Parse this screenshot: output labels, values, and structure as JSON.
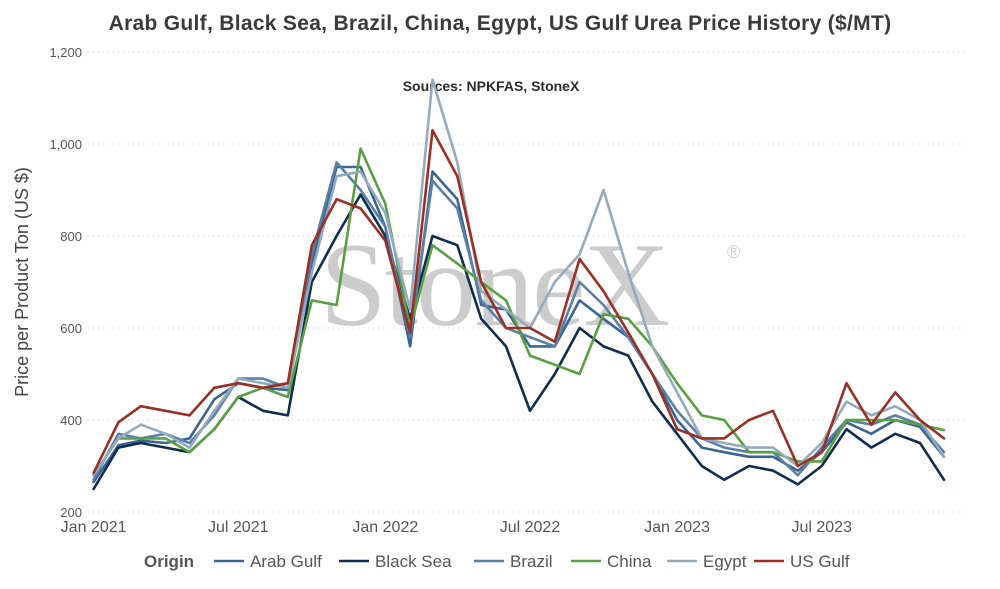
{
  "chart_data": {
    "type": "line",
    "title": "Arab Gulf, Black Sea, Brazil, China, Egypt, US Gulf Urea Price History ($/MT)",
    "subtitle": "Sources: NPKFAS, StoneX",
    "ylabel": "Price per Product Ton (US $)",
    "xlabel": "",
    "ylim": [
      200,
      1200
    ],
    "yticks": [
      200,
      400,
      600,
      800,
      1000,
      1200
    ],
    "ytick_labels": [
      "200",
      "400",
      "600",
      "800",
      "1,000",
      "1,200"
    ],
    "xlim": [
      "2020-12-25",
      "2023-12-31"
    ],
    "xticks": [
      {
        "date": "2021-01-01",
        "label": "Jan 2021"
      },
      {
        "date": "2021-07-01",
        "label": "Jul 2021"
      },
      {
        "date": "2022-01-01",
        "label": "Jan 2022"
      },
      {
        "date": "2022-07-01",
        "label": "Jul 2022"
      },
      {
        "date": "2023-01-01",
        "label": "Jan 2023"
      },
      {
        "date": "2023-07-01",
        "label": "Jul 2023"
      }
    ],
    "grid": "horizontal dotted",
    "legend_title": "Origin",
    "legend_position": "bottom",
    "watermark": "StoneX",
    "watermark_mark": "®",
    "series": [
      {
        "name": "Arab Gulf",
        "color": "#3b6591",
        "points": [
          [
            "2021-01-01",
            265
          ],
          [
            "2021-02-01",
            345
          ],
          [
            "2021-03-01",
            355
          ],
          [
            "2021-04-01",
            350
          ],
          [
            "2021-05-01",
            360
          ],
          [
            "2021-06-01",
            445
          ],
          [
            "2021-07-01",
            480
          ],
          [
            "2021-08-01",
            470
          ],
          [
            "2021-09-01",
            465
          ],
          [
            "2021-10-01",
            740
          ],
          [
            "2021-11-01",
            950
          ],
          [
            "2021-12-01",
            950
          ],
          [
            "2022-01-01",
            820
          ],
          [
            "2022-02-01",
            560
          ],
          [
            "2022-03-01",
            940
          ],
          [
            "2022-04-01",
            880
          ],
          [
            "2022-05-01",
            650
          ],
          [
            "2022-06-01",
            640
          ],
          [
            "2022-07-01",
            560
          ],
          [
            "2022-08-01",
            560
          ],
          [
            "2022-09-01",
            660
          ],
          [
            "2022-10-01",
            620
          ],
          [
            "2022-11-01",
            580
          ],
          [
            "2022-12-01",
            500
          ],
          [
            "2023-01-01",
            400
          ],
          [
            "2023-02-01",
            340
          ],
          [
            "2023-03-01",
            330
          ],
          [
            "2023-04-01",
            320
          ],
          [
            "2023-05-01",
            320
          ],
          [
            "2023-06-01",
            290
          ],
          [
            "2023-07-01",
            330
          ],
          [
            "2023-08-01",
            395
          ],
          [
            "2023-09-01",
            370
          ],
          [
            "2023-10-01",
            400
          ],
          [
            "2023-11-01",
            385
          ],
          [
            "2023-12-01",
            320
          ]
        ]
      },
      {
        "name": "Black Sea",
        "color": "#0f2d4e",
        "points": [
          [
            "2021-01-01",
            250
          ],
          [
            "2021-02-01",
            340
          ],
          [
            "2021-03-01",
            350
          ],
          [
            "2021-04-01",
            340
          ],
          [
            "2021-05-01",
            330
          ],
          [
            "2021-06-01",
            380
          ],
          [
            "2021-07-01",
            450
          ],
          [
            "2021-08-01",
            420
          ],
          [
            "2021-09-01",
            410
          ],
          [
            "2021-10-01",
            700
          ],
          [
            "2021-11-01",
            800
          ],
          [
            "2021-12-01",
            890
          ],
          [
            "2022-01-01",
            800
          ],
          [
            "2022-02-01",
            620
          ],
          [
            "2022-03-01",
            800
          ],
          [
            "2022-04-01",
            780
          ],
          [
            "2022-05-01",
            620
          ],
          [
            "2022-06-01",
            560
          ],
          [
            "2022-07-01",
            420
          ],
          [
            "2022-08-01",
            500
          ],
          [
            "2022-09-01",
            600
          ],
          [
            "2022-10-01",
            560
          ],
          [
            "2022-11-01",
            540
          ],
          [
            "2022-12-01",
            440
          ],
          [
            "2023-01-01",
            370
          ],
          [
            "2023-02-01",
            300
          ],
          [
            "2023-03-01",
            270
          ],
          [
            "2023-04-01",
            300
          ],
          [
            "2023-05-01",
            290
          ],
          [
            "2023-06-01",
            260
          ],
          [
            "2023-07-01",
            300
          ],
          [
            "2023-08-01",
            380
          ],
          [
            "2023-09-01",
            340
          ],
          [
            "2023-10-01",
            370
          ],
          [
            "2023-11-01",
            350
          ],
          [
            "2023-12-01",
            270
          ]
        ]
      },
      {
        "name": "Brazil",
        "color": "#5a7fa8",
        "points": [
          [
            "2021-01-01",
            270
          ],
          [
            "2021-02-01",
            370
          ],
          [
            "2021-03-01",
            360
          ],
          [
            "2021-04-01",
            370
          ],
          [
            "2021-05-01",
            350
          ],
          [
            "2021-06-01",
            410
          ],
          [
            "2021-07-01",
            490
          ],
          [
            "2021-08-01",
            490
          ],
          [
            "2021-09-01",
            470
          ],
          [
            "2021-10-01",
            760
          ],
          [
            "2021-11-01",
            960
          ],
          [
            "2021-12-01",
            900
          ],
          [
            "2022-01-01",
            820
          ],
          [
            "2022-02-01",
            580
          ],
          [
            "2022-03-01",
            920
          ],
          [
            "2022-04-01",
            860
          ],
          [
            "2022-05-01",
            660
          ],
          [
            "2022-06-01",
            600
          ],
          [
            "2022-07-01",
            580
          ],
          [
            "2022-08-01",
            560
          ],
          [
            "2022-09-01",
            700
          ],
          [
            "2022-10-01",
            650
          ],
          [
            "2022-11-01",
            580
          ],
          [
            "2022-12-01",
            500
          ],
          [
            "2023-01-01",
            420
          ],
          [
            "2023-02-01",
            360
          ],
          [
            "2023-03-01",
            340
          ],
          [
            "2023-04-01",
            330
          ],
          [
            "2023-05-01",
            330
          ],
          [
            "2023-06-01",
            280
          ],
          [
            "2023-07-01",
            340
          ],
          [
            "2023-08-01",
            400
          ],
          [
            "2023-09-01",
            390
          ],
          [
            "2023-10-01",
            410
          ],
          [
            "2023-11-01",
            390
          ],
          [
            "2023-12-01",
            330
          ]
        ]
      },
      {
        "name": "China",
        "color": "#5aa043",
        "points": [
          [
            "2021-01-01",
            280
          ],
          [
            "2021-02-01",
            360
          ],
          [
            "2021-03-01",
            360
          ],
          [
            "2021-04-01",
            360
          ],
          [
            "2021-05-01",
            330
          ],
          [
            "2021-06-01",
            380
          ],
          [
            "2021-07-01",
            450
          ],
          [
            "2021-08-01",
            470
          ],
          [
            "2021-09-01",
            450
          ],
          [
            "2021-10-01",
            660
          ],
          [
            "2021-11-01",
            650
          ],
          [
            "2021-12-01",
            990
          ],
          [
            "2022-01-01",
            870
          ],
          [
            "2022-02-01",
            600
          ],
          [
            "2022-03-01",
            780
          ],
          [
            "2022-04-01",
            740
          ],
          [
            "2022-05-01",
            700
          ],
          [
            "2022-06-01",
            660
          ],
          [
            "2022-07-01",
            540
          ],
          [
            "2022-08-01",
            520
          ],
          [
            "2022-09-01",
            500
          ],
          [
            "2022-10-01",
            630
          ],
          [
            "2022-11-01",
            620
          ],
          [
            "2022-12-01",
            560
          ],
          [
            "2023-01-01",
            480
          ],
          [
            "2023-02-01",
            410
          ],
          [
            "2023-03-01",
            400
          ],
          [
            "2023-04-01",
            330
          ],
          [
            "2023-05-01",
            330
          ],
          [
            "2023-06-01",
            310
          ],
          [
            "2023-07-01",
            310
          ],
          [
            "2023-08-01",
            400
          ],
          [
            "2023-09-01",
            400
          ],
          [
            "2023-10-01",
            400
          ],
          [
            "2023-11-01",
            390
          ],
          [
            "2023-12-01",
            378
          ]
        ]
      },
      {
        "name": "Egypt",
        "color": "#94abbe",
        "points": [
          [
            "2021-01-01",
            280
          ],
          [
            "2021-02-01",
            360
          ],
          [
            "2021-03-01",
            390
          ],
          [
            "2021-04-01",
            370
          ],
          [
            "2021-05-01",
            340
          ],
          [
            "2021-06-01",
            420
          ],
          [
            "2021-07-01",
            490
          ],
          [
            "2021-08-01",
            480
          ],
          [
            "2021-09-01",
            470
          ],
          [
            "2021-10-01",
            720
          ],
          [
            "2021-11-01",
            930
          ],
          [
            "2021-12-01",
            940
          ],
          [
            "2022-01-01",
            850
          ],
          [
            "2022-02-01",
            640
          ],
          [
            "2022-03-01",
            1140
          ],
          [
            "2022-04-01",
            960
          ],
          [
            "2022-05-01",
            680
          ],
          [
            "2022-06-01",
            640
          ],
          [
            "2022-07-01",
            600
          ],
          [
            "2022-08-01",
            700
          ],
          [
            "2022-09-01",
            760
          ],
          [
            "2022-10-01",
            900
          ],
          [
            "2022-11-01",
            720
          ],
          [
            "2022-12-01",
            560
          ],
          [
            "2023-01-01",
            460
          ],
          [
            "2023-02-01",
            360
          ],
          [
            "2023-03-01",
            350
          ],
          [
            "2023-04-01",
            340
          ],
          [
            "2023-05-01",
            340
          ],
          [
            "2023-06-01",
            300
          ],
          [
            "2023-07-01",
            350
          ],
          [
            "2023-08-01",
            440
          ],
          [
            "2023-09-01",
            410
          ],
          [
            "2023-10-01",
            430
          ],
          [
            "2023-11-01",
            400
          ],
          [
            "2023-12-01",
            320
          ]
        ]
      },
      {
        "name": "US Gulf",
        "color": "#9b2f24",
        "points": [
          [
            "2021-01-01",
            285
          ],
          [
            "2021-02-01",
            395
          ],
          [
            "2021-03-01",
            430
          ],
          [
            "2021-04-01",
            420
          ],
          [
            "2021-05-01",
            410
          ],
          [
            "2021-06-01",
            470
          ],
          [
            "2021-07-01",
            480
          ],
          [
            "2021-08-01",
            470
          ],
          [
            "2021-09-01",
            480
          ],
          [
            "2021-10-01",
            780
          ],
          [
            "2021-11-01",
            880
          ],
          [
            "2021-12-01",
            860
          ],
          [
            "2022-01-01",
            790
          ],
          [
            "2022-02-01",
            590
          ],
          [
            "2022-03-01",
            1030
          ],
          [
            "2022-04-01",
            930
          ],
          [
            "2022-05-01",
            700
          ],
          [
            "2022-06-01",
            600
          ],
          [
            "2022-07-01",
            600
          ],
          [
            "2022-08-01",
            570
          ],
          [
            "2022-09-01",
            750
          ],
          [
            "2022-10-01",
            680
          ],
          [
            "2022-11-01",
            590
          ],
          [
            "2022-12-01",
            500
          ],
          [
            "2023-01-01",
            380
          ],
          [
            "2023-02-01",
            360
          ],
          [
            "2023-03-01",
            360
          ],
          [
            "2023-04-01",
            400
          ],
          [
            "2023-05-01",
            420
          ],
          [
            "2023-06-01",
            300
          ],
          [
            "2023-07-01",
            330
          ],
          [
            "2023-08-01",
            480
          ],
          [
            "2023-09-01",
            390
          ],
          [
            "2023-10-01",
            460
          ],
          [
            "2023-11-01",
            400
          ],
          [
            "2023-12-01",
            360
          ]
        ]
      }
    ]
  }
}
